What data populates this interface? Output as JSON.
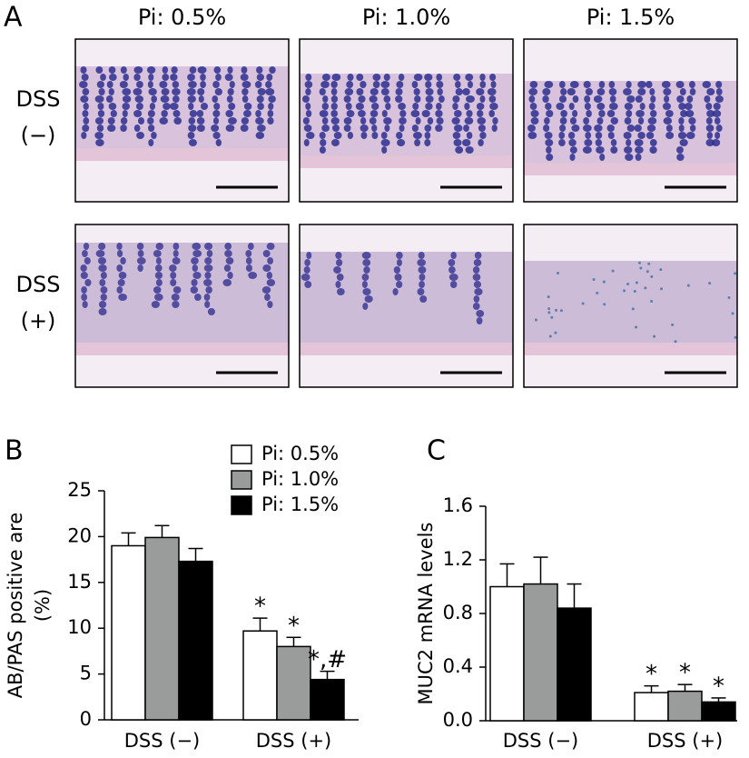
{
  "panel_a": {
    "label": "A",
    "column_headers": [
      "Pi: 0.5%",
      "Pi: 1.0%",
      "Pi: 1.5%"
    ],
    "row_labels": [
      [
        "DSS",
        "(−)"
      ],
      [
        "DSS",
        "(+)"
      ]
    ]
  },
  "chart_data": [
    {
      "type": "bar",
      "panel_label": "B",
      "ylabel": [
        "AB/PAS positive are",
        "(%)"
      ],
      "categories": [
        "DSS (−)",
        "DSS (+)"
      ],
      "series": [
        {
          "name": "Pi: 0.5%",
          "color": "#ffffff",
          "values": [
            19.0,
            9.7
          ],
          "errors": [
            1.4,
            1.4
          ],
          "annotations": [
            null,
            "*"
          ]
        },
        {
          "name": "Pi: 1.0%",
          "color": "#9a9c9b",
          "values": [
            19.9,
            8.0
          ],
          "errors": [
            1.3,
            1.0
          ],
          "annotations": [
            null,
            "*"
          ]
        },
        {
          "name": "Pi: 1.5%",
          "color": "#000000",
          "values": [
            17.3,
            4.4
          ],
          "errors": [
            1.4,
            0.9
          ],
          "annotations": [
            null,
            "*,#"
          ]
        }
      ],
      "ylim": [
        0,
        25
      ],
      "yticks": [
        0,
        5,
        10,
        15,
        20,
        25
      ],
      "legend": true
    },
    {
      "type": "bar",
      "panel_label": "C",
      "ylabel": [
        "MUC2 mRNA levels"
      ],
      "categories": [
        "DSS (−)",
        "DSS (+)"
      ],
      "series": [
        {
          "color": "#ffffff",
          "values": [
            1.0,
            0.21
          ],
          "errors": [
            0.17,
            0.05
          ],
          "annotations": [
            null,
            "*"
          ]
        },
        {
          "color": "#9a9c9b",
          "values": [
            1.02,
            0.22
          ],
          "errors": [
            0.2,
            0.05
          ],
          "annotations": [
            null,
            "*"
          ]
        },
        {
          "color": "#000000",
          "values": [
            0.84,
            0.14
          ],
          "errors": [
            0.18,
            0.03
          ],
          "annotations": [
            null,
            "*"
          ]
        }
      ],
      "ylim": [
        0,
        1.6
      ],
      "yticks": [
        {
          "value": 0,
          "label": "0.0"
        },
        0.4,
        0.8,
        1.2,
        1.6
      ],
      "legend": false
    }
  ]
}
